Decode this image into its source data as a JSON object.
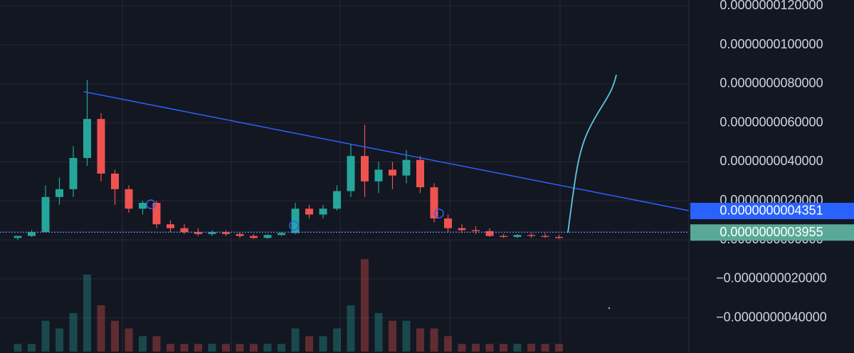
{
  "chart_data": {
    "type": "candlestick",
    "categories": [
      null,
      null,
      null,
      null,
      null,
      null,
      null,
      null,
      null,
      null,
      null,
      null,
      null,
      null,
      null,
      null,
      null,
      null,
      null,
      null,
      null,
      null,
      null,
      null,
      null,
      null,
      null,
      null,
      null,
      null,
      null,
      null,
      null,
      null,
      null,
      null,
      null,
      null,
      null,
      null
    ],
    "open": [
      1e-10,
      2e-10,
      4e-10,
      2.2e-09,
      2.6e-09,
      4.2e-09,
      6.2e-09,
      3.4e-09,
      2.6e-09,
      1.6e-09,
      1.9e-09,
      8e-10,
      6e-10,
      4e-10,
      3e-10,
      4e-10,
      3e-10,
      2e-10,
      1e-10,
      2.5e-10,
      3.5e-10,
      1.6e-09,
      1.3e-09,
      1.6e-09,
      2.5e-09,
      4.3e-09,
      3e-09,
      3.6e-09,
      3.3e-09,
      4.1e-09,
      2.7e-09,
      1.1e-09,
      6e-10,
      5e-10,
      4.5e-10,
      2e-10,
      1.5e-10,
      2.5e-10,
      2e-10,
      1.5e-10
    ],
    "high": [
      2e-10,
      5e-10,
      2.8e-09,
      3.2e-09,
      4.8e-09,
      8.2e-09,
      6.5e-09,
      3.6e-09,
      2.8e-09,
      2e-09,
      2e-09,
      1e-09,
      8e-10,
      6e-10,
      5e-10,
      5e-10,
      4e-10,
      3e-10,
      3e-10,
      4e-10,
      1.9e-09,
      1.8e-09,
      1.8e-09,
      2.8e-09,
      4.9e-09,
      5.9e-09,
      4e-09,
      4e-09,
      4.6e-09,
      4.3e-09,
      2.9e-09,
      1.3e-09,
      8e-10,
      7e-10,
      6e-10,
      3e-10,
      3e-10,
      3.5e-10,
      3.5e-10,
      2.5e-10
    ],
    "low": [
      0,
      1.5e-10,
      4e-10,
      1.8e-09,
      2.2e-09,
      3.8e-09,
      3e-09,
      1.8e-09,
      1.4e-09,
      1.3e-09,
      6e-10,
      4e-10,
      3e-10,
      2e-10,
      2e-10,
      2e-10,
      1e-10,
      5e-11,
      5e-11,
      2e-10,
      3e-10,
      1.1e-09,
      1.1e-09,
      1.5e-09,
      2.2e-09,
      2.2e-09,
      2.4e-09,
      2.6e-09,
      2.9e-09,
      2.4e-09,
      9e-10,
      4e-10,
      3.5e-10,
      3e-10,
      1.5e-10,
      1e-10,
      1e-10,
      1e-10,
      1e-10,
      5e-11
    ],
    "close": [
      2e-10,
      4e-10,
      2.2e-09,
      2.6e-09,
      4.2e-09,
      6.2e-09,
      3.4e-09,
      2.6e-09,
      1.6e-09,
      1.9e-09,
      8e-10,
      6e-10,
      4e-10,
      3e-10,
      4e-10,
      3e-10,
      2e-10,
      1e-10,
      2.5e-10,
      3.5e-10,
      1.6e-09,
      1.3e-09,
      1.6e-09,
      2.5e-09,
      4.3e-09,
      3e-09,
      3.6e-09,
      3.3e-09,
      4.1e-09,
      2.7e-09,
      1.1e-09,
      6e-10,
      5e-10,
      4.5e-10,
      2e-10,
      1.5e-10,
      2.5e-10,
      2e-10,
      1.5e-10,
      1e-10
    ],
    "volume": [
      1,
      1,
      4,
      3,
      5,
      10,
      6,
      4,
      3,
      2,
      2,
      1,
      1,
      1,
      1,
      1,
      1,
      1,
      1,
      1,
      3,
      2,
      2,
      3,
      6,
      12,
      5,
      4,
      4,
      3,
      3,
      2,
      1,
      1,
      1,
      1,
      1,
      1,
      1,
      1
    ],
    "up_color": "#26a69a",
    "down_color": "#ef5350",
    "ylim": [
      -5.8e-09,
      1.23e-08
    ],
    "yticks": [
      {
        "value": 1.2e-08,
        "label": "0.0000000120000"
      },
      {
        "value": 1e-08,
        "label": "0.0000000100000"
      },
      {
        "value": 8e-09,
        "label": "0.0000000080000"
      },
      {
        "value": 6e-09,
        "label": "0.0000000060000"
      },
      {
        "value": 4e-09,
        "label": "0.0000000040000"
      },
      {
        "value": 2e-09,
        "label": "0.0000000020000"
      },
      {
        "value": 0,
        "label": "0.0000000000000"
      },
      {
        "value": -2e-09,
        "label": "−0.0000000020000"
      },
      {
        "value": -4e-09,
        "label": "−0.0000000040000"
      }
    ],
    "grid": true,
    "trendline": {
      "values": [
        7.6e-09,
        1.5e-09
      ],
      "label": "0.0000000004351",
      "color": "#2962ff"
    },
    "current_price": {
      "value": 3.955e-10,
      "label": "0.0000000003955",
      "color": "#5aa897"
    }
  }
}
